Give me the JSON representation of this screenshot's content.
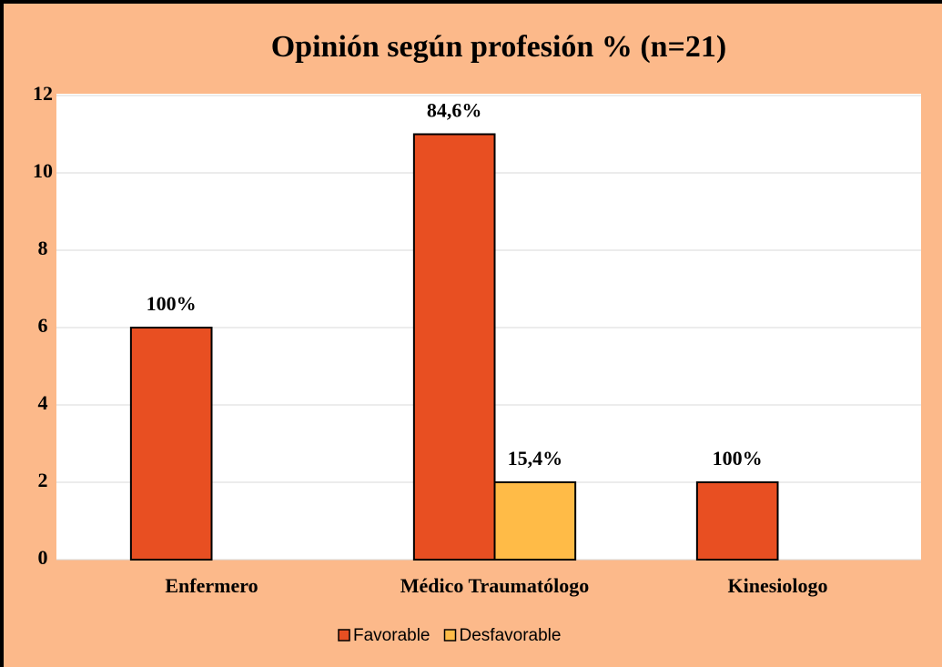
{
  "chart_data": {
    "type": "bar",
    "title": "Opinión según profesión % (n=21)",
    "categories": [
      "Enfermero",
      "Médico Traumatólogo",
      "Kinesiologo"
    ],
    "series": [
      {
        "name": "Favorable",
        "color": "#e84f22",
        "values": [
          6,
          11,
          2
        ],
        "labels": [
          "100%",
          "84,6%",
          "100%"
        ]
      },
      {
        "name": "Desfavorable",
        "color": "#ffbb47",
        "values": [
          null,
          2,
          null
        ],
        "labels": [
          null,
          "15,4%",
          null
        ]
      }
    ],
    "ylim": [
      0,
      12
    ],
    "yticks": [
      0,
      2,
      4,
      6,
      8,
      10,
      12
    ],
    "grid": true,
    "legend": "bottom"
  }
}
